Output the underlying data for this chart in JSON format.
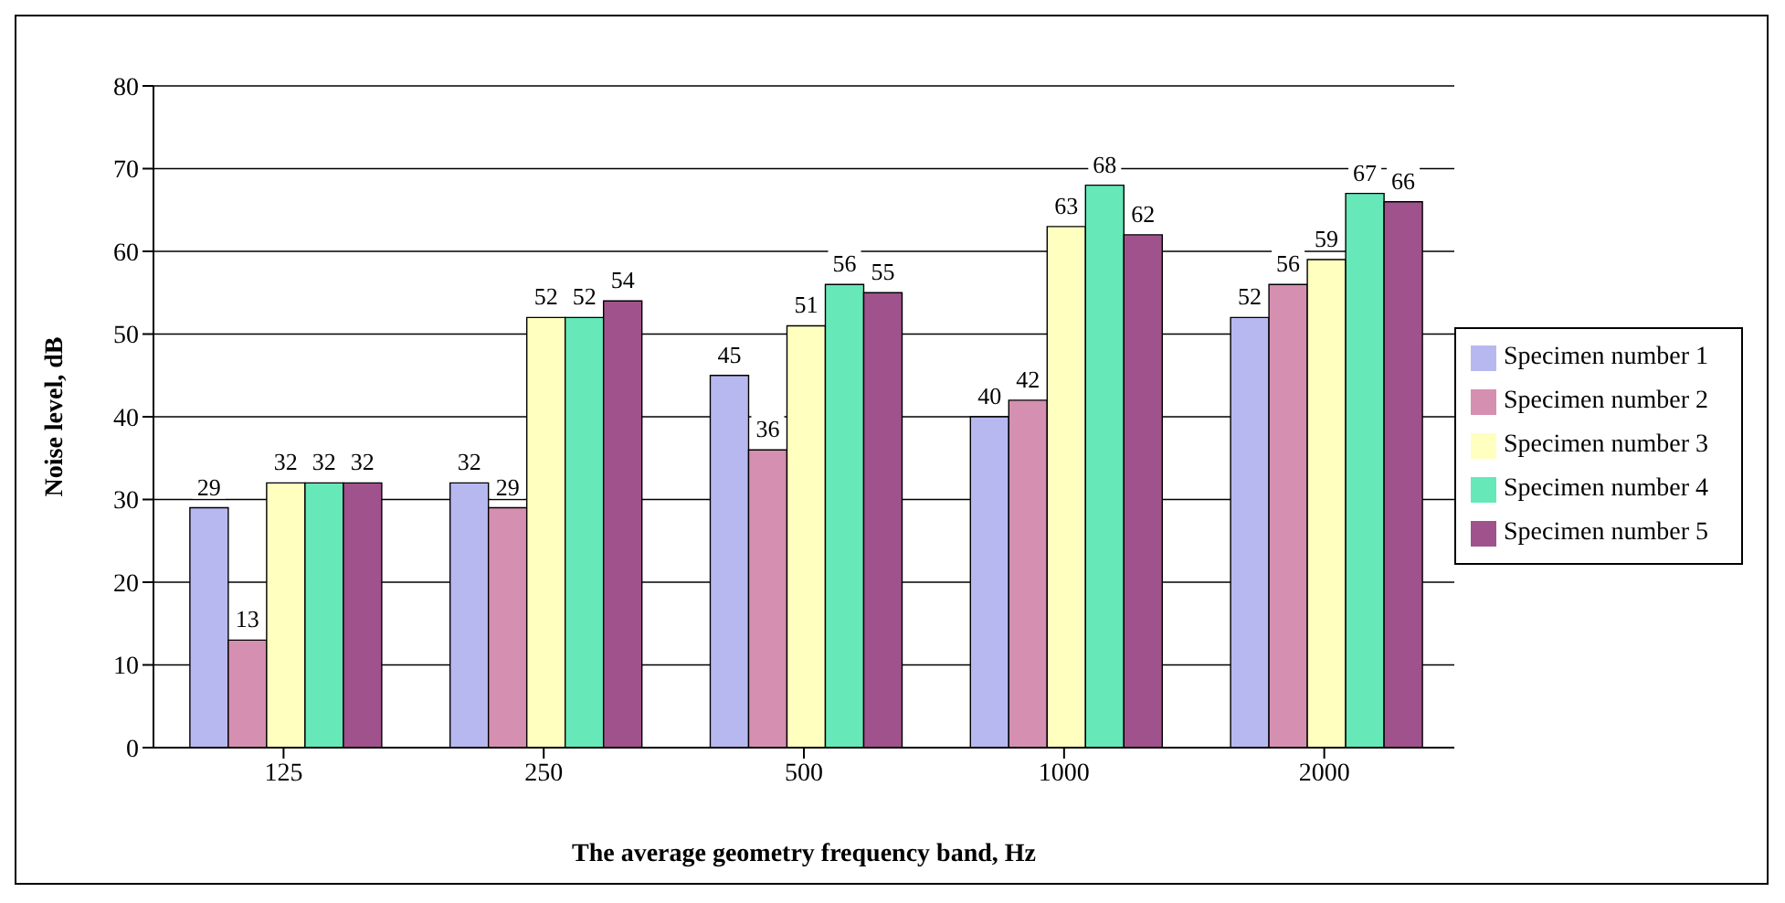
{
  "chart_data": {
    "type": "bar",
    "xlabel": "The average geometry frequency band, Hz",
    "ylabel": "Noise level, dB",
    "categories": [
      "125",
      "250",
      "500",
      "1000",
      "2000"
    ],
    "series": [
      {
        "name": "Specimen number 1",
        "color": "#b8b8f0",
        "values": [
          29,
          32,
          45,
          40,
          52
        ]
      },
      {
        "name": "Specimen number 2",
        "color": "#d58fb0",
        "values": [
          13,
          29,
          36,
          42,
          56
        ]
      },
      {
        "name": "Specimen number 3",
        "color": "#ffffc0",
        "values": [
          32,
          52,
          51,
          63,
          59
        ]
      },
      {
        "name": "Specimen number 4",
        "color": "#66e8b8",
        "values": [
          32,
          52,
          56,
          68,
          67
        ]
      },
      {
        "name": "Specimen number 5",
        "color": "#a0528c",
        "values": [
          32,
          54,
          55,
          62,
          66
        ]
      }
    ],
    "ylim": [
      0,
      80
    ],
    "yticks": [
      0,
      10,
      20,
      30,
      40,
      50,
      60,
      70,
      80
    ],
    "grid": "y",
    "legend": "right",
    "data_labels": true
  }
}
